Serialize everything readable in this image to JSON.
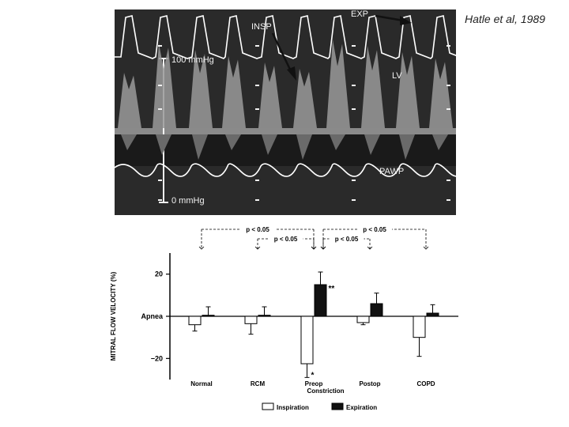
{
  "citation": "Hatle et al, 1989",
  "tracing": {
    "labels": {
      "insp": "INSP",
      "exp": "EXP",
      "lv": "LV",
      "pawp": "PAWP",
      "top_scale": "100 mmHg",
      "bottom_scale": "0 mmHg"
    },
    "colors": {
      "background": "#2a2a2a",
      "trace": "#ffffff",
      "marker": "#f2f2f2"
    }
  },
  "chart_data": {
    "type": "bar",
    "ylabel": "MITRAL FLOW VELOCITY (%)",
    "xlabel": "Constriction",
    "ylim": [
      -30,
      30
    ],
    "yticks": [
      {
        "value": 20,
        "label": "20"
      },
      {
        "value": 0,
        "label": "Apnea"
      },
      {
        "value": -20,
        "label": "−20"
      }
    ],
    "categories": [
      "Normal",
      "RCM",
      "Preop",
      "Postop",
      "COPD"
    ],
    "series": [
      {
        "name": "Inspiration",
        "color": "#ffffff",
        "values": [
          -4,
          -3.5,
          -22.5,
          -3,
          -10
        ],
        "errors": [
          3,
          5,
          6.5,
          1,
          9
        ]
      },
      {
        "name": "Expiration",
        "color": "#111111",
        "values": [
          0.5,
          0.5,
          15,
          6,
          1.5
        ],
        "errors": [
          4,
          4,
          6,
          5,
          4
        ]
      }
    ],
    "annotations": [
      {
        "category": "Preop",
        "series": "Inspiration",
        "text": "*"
      },
      {
        "category": "Preop",
        "series": "Expiration",
        "text": "**"
      }
    ],
    "significance": [
      {
        "from": "Normal",
        "to": "Preop",
        "text": "p < 0.05"
      },
      {
        "from": "RCM",
        "to": "Preop",
        "text": "p < 0.05"
      },
      {
        "from": "Preop",
        "to": "Postop",
        "text": "p < 0.05"
      },
      {
        "from": "Preop",
        "to": "COPD",
        "text": "p < 0.05"
      }
    ],
    "legend": {
      "position": "bottom"
    }
  }
}
